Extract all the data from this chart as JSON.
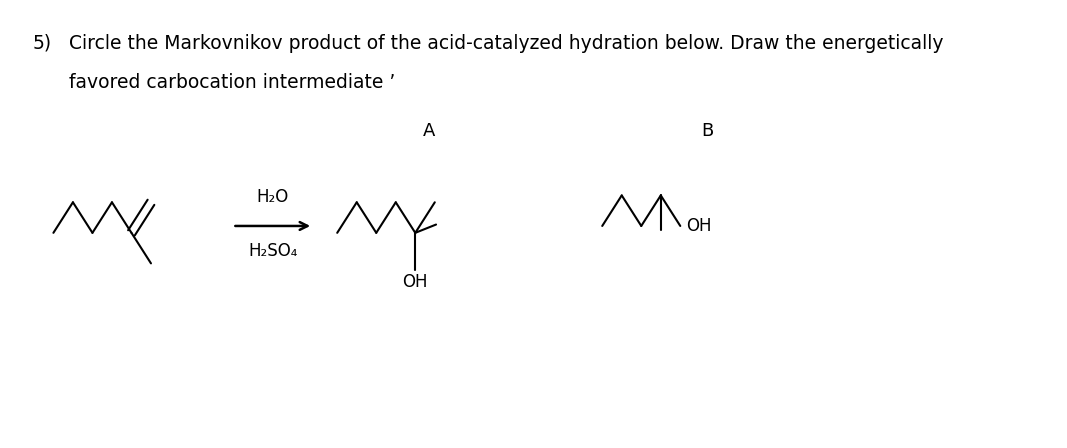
{
  "title_number": "5)",
  "title_text": "Circle the Markovnikov product of the acid-catalyzed hydration below. Draw the energetically",
  "title_text2": "favored carbocation intermediate ’",
  "label_A": "A",
  "label_B": "B",
  "reagent_top": "H₂O",
  "reagent_bottom": "H₂SO₄",
  "oh_label_A": "OH",
  "oh_label_B": "OH",
  "bg_color": "#ffffff",
  "line_color": "#000000",
  "font_size_title": 13.5,
  "font_size_label": 13,
  "font_size_reagent": 12,
  "font_size_oh": 12
}
